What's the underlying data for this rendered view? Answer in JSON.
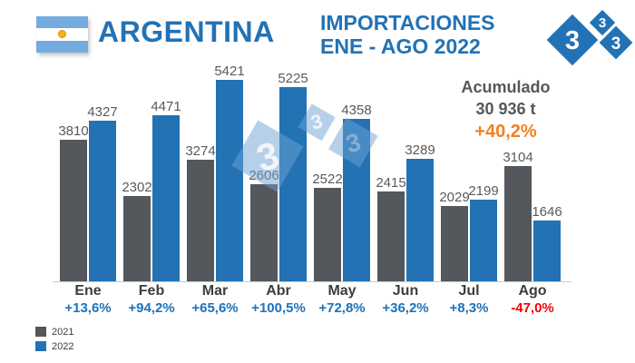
{
  "header": {
    "title": "ARGENTINA",
    "subtitle_line1": "IMPORTACIONES",
    "subtitle_line2": "ENE - AGO 2022",
    "flag": "argentina-flag",
    "logo_glyph": "3"
  },
  "summary": {
    "label": "Acumulado",
    "total": "30 936 t",
    "pct": "+40,2%",
    "pct_color": "#F28021"
  },
  "chart_data": {
    "type": "bar",
    "title": "IMPORTACIONES ENE - AGO 2022",
    "categories": [
      "Ene",
      "Feb",
      "Mar",
      "Abr",
      "May",
      "Jun",
      "Jul",
      "Ago"
    ],
    "series": [
      {
        "name": "2021",
        "color": "#54575C",
        "values": [
          3810,
          2302,
          3274,
          2606,
          2522,
          2415,
          2029,
          3104
        ]
      },
      {
        "name": "2022",
        "color": "#2272B4",
        "values": [
          4327,
          4471,
          5421,
          5225,
          4358,
          3289,
          2199,
          1646
        ]
      }
    ],
    "pct_change": [
      {
        "text": "+13,6%",
        "color": "#1F72B8"
      },
      {
        "text": "+94,2%",
        "color": "#1F72B8"
      },
      {
        "text": "+65,6%",
        "color": "#1F72B8"
      },
      {
        "text": "+100,5%",
        "color": "#1F72B8"
      },
      {
        "text": "+72,8%",
        "color": "#1F72B8"
      },
      {
        "text": "+36,2%",
        "color": "#1F72B8"
      },
      {
        "text": "+8,3%",
        "color": "#1F72B8"
      },
      {
        "text": "-47,0%",
        "color": "#F50008"
      }
    ],
    "ylim": [
      0,
      5854
    ],
    "grid": false,
    "legend_position": "bottom-left",
    "value_labels": true
  },
  "legend": {
    "items": [
      {
        "label": "2021",
        "color": "#54575C"
      },
      {
        "label": "2022",
        "color": "#2272B4"
      }
    ]
  },
  "colors": {
    "accent_blue": "#2272B5",
    "bar_gray": "#54575C",
    "orange": "#F28021",
    "red": "#F50008",
    "watermark_blue": "#6FA3D4",
    "flag_blue": "#74ACDF"
  }
}
